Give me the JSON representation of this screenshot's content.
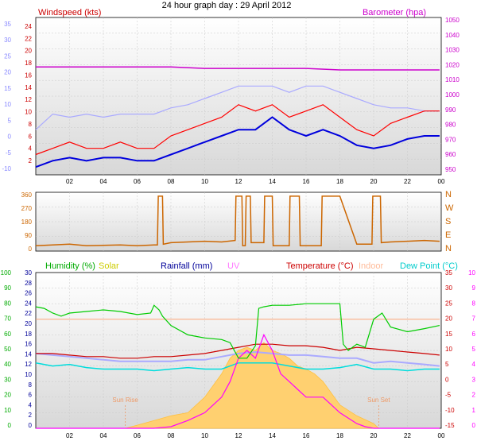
{
  "chart_data": [
    {
      "type": "line",
      "title": "24 hour graph day : 29 April 2012",
      "left_axis_label": "Windspeed (kts)",
      "right_axis_label": "Barometer (hpa)",
      "x_tick_labels": [
        "02",
        "04",
        "06",
        "08",
        "10",
        "12",
        "14",
        "16",
        "18",
        "20",
        "22",
        "00"
      ],
      "x_range_hours": [
        0,
        24
      ],
      "left_axis_outer_ticks": [
        "35",
        "30",
        "25",
        "20",
        "15",
        "10",
        "5",
        "0",
        "-5",
        "-10"
      ],
      "left_axis_inner_ticks": [
        "24",
        "22",
        "20",
        "18",
        "16",
        "14",
        "12",
        "10",
        "8",
        "6",
        "4",
        "2"
      ],
      "right_axis_ticks": [
        "1050",
        "1040",
        "1030",
        "1020",
        "1010",
        "1000",
        "990",
        "980",
        "970",
        "960",
        "950"
      ],
      "wind_ylim": [
        1,
        25
      ],
      "baro_ylim": [
        945,
        1050
      ],
      "grid": true,
      "series": [
        {
          "name": "Windspeed (kts)",
          "color": "#ff0000",
          "x_hours": [
            0,
            1,
            2,
            3,
            4,
            5,
            6,
            7,
            8,
            9,
            10,
            11,
            12,
            13,
            14,
            15,
            16,
            17,
            18,
            19,
            20,
            21,
            22,
            23,
            23.9
          ],
          "values": [
            4,
            5,
            6,
            5,
            5,
            6,
            5,
            5,
            7,
            8,
            9,
            10,
            12,
            11,
            12,
            10,
            11,
            12,
            10,
            8,
            7,
            9,
            10,
            11,
            11
          ]
        },
        {
          "color": "#0000dd",
          "x_hours": [
            0,
            1,
            2,
            3,
            4,
            5,
            6,
            7,
            8,
            9,
            10,
            11,
            12,
            13,
            14,
            15,
            16,
            17,
            18,
            19,
            20,
            21,
            22,
            23,
            23.9
          ],
          "values": [
            2,
            3,
            3.5,
            3,
            3.5,
            3.5,
            3,
            3,
            4,
            5,
            6,
            7,
            8,
            8,
            10,
            8,
            7,
            8,
            7,
            5.5,
            5,
            5.5,
            6.5,
            7,
            7
          ]
        },
        {
          "color": "#aaaaff",
          "x_hours": [
            0,
            1,
            2,
            3,
            4,
            5,
            6,
            7,
            8,
            9,
            10,
            11,
            12,
            13,
            14,
            15,
            16,
            17,
            18,
            19,
            20,
            21,
            22,
            23,
            23.9
          ],
          "values": [
            8,
            10.5,
            10,
            10.5,
            10,
            10.5,
            10.5,
            10.5,
            11.5,
            12,
            13,
            14,
            15,
            15,
            15,
            14,
            15,
            15,
            14,
            13,
            12,
            11.5,
            11.5,
            11,
            11
          ]
        },
        {
          "name": "Barometer (hpa)",
          "color": "#cc00cc",
          "x_hours": [
            0,
            2,
            4,
            6,
            8,
            10,
            12,
            14,
            16,
            18,
            20,
            22,
            23.9
          ],
          "values": [
            1017,
            1017,
            1017,
            1017,
            1017,
            1016,
            1016,
            1016,
            1016,
            1015,
            1015,
            1015,
            1015
          ]
        }
      ]
    },
    {
      "type": "line",
      "left_axis_ticks": [
        "360",
        "270",
        "180",
        "90",
        "0"
      ],
      "right_axis_labels": [
        "N",
        "W",
        "S",
        "E",
        "N"
      ],
      "x_range_hours": [
        0,
        24
      ],
      "ylim": [
        0,
        360
      ],
      "grid": true,
      "series": [
        {
          "color": "#cc6600",
          "x_hours": [
            0,
            1,
            2,
            3,
            4,
            5,
            6,
            7,
            7.2,
            7.25,
            7.5,
            7.55,
            8,
            9,
            10,
            11,
            11.8,
            11.85,
            12.2,
            12.25,
            12.4,
            12.45,
            12.7,
            12.75,
            13.5,
            13.55,
            14,
            14.05,
            15,
            15.05,
            15.6,
            15.65,
            16.9,
            16.95,
            18,
            19,
            19.9,
            19.95,
            20.4,
            20.45,
            21,
            22,
            23,
            23.9
          ],
          "values": [
            20,
            25,
            30,
            20,
            22,
            25,
            20,
            25,
            25,
            350,
            350,
            30,
            40,
            45,
            50,
            45,
            55,
            350,
            350,
            20,
            20,
            350,
            350,
            40,
            40,
            350,
            350,
            20,
            20,
            350,
            350,
            20,
            20,
            350,
            350,
            30,
            30,
            350,
            350,
            40,
            45,
            50,
            55,
            50
          ]
        }
      ]
    },
    {
      "type": "line",
      "series_labels": [
        "Humidity (%)",
        "Solar",
        "Rainfall (mm)",
        "UV",
        "Temperature (°C)",
        "Indoor",
        "Dew Point (°C)"
      ],
      "outer_left_ticks": [
        "100",
        "90",
        "80",
        "70",
        "60",
        "50",
        "40",
        "30",
        "20",
        "10",
        "0"
      ],
      "inner_left_ticks": [
        "30",
        "28",
        "26",
        "24",
        "22",
        "20",
        "18",
        "16",
        "14",
        "12",
        "10",
        "8",
        "6",
        "4",
        "2",
        "0"
      ],
      "temp_ticks": [
        "35",
        "30",
        "25",
        "20",
        "15",
        "10",
        "5",
        "0",
        "-5",
        "-10",
        "-15"
      ],
      "uv_ticks": [
        "10",
        "9",
        "8",
        "7",
        "6",
        "5",
        "4",
        "3",
        "2",
        "1",
        "0"
      ],
      "annotations": [
        "Sun Rise",
        "Sun Set"
      ],
      "sun_rise_hour": 5.3,
      "sun_set_hour": 20.3,
      "humidity_ylim": [
        0,
        100
      ],
      "temperature_ylim": [
        -15,
        35
      ],
      "uv_ylim": [
        0,
        10
      ],
      "x_range_hours": [
        0,
        24
      ],
      "grid": true,
      "series": [
        {
          "name": "Humidity (%)",
          "color": "#00cc00",
          "x_hours": [
            0,
            0.5,
            1,
            1.5,
            2,
            3,
            4,
            5,
            6,
            6.8,
            7,
            7.3,
            7.5,
            8,
            9,
            10,
            11,
            11.5,
            12,
            12.5,
            13,
            13.2,
            13.5,
            14,
            15,
            16,
            16.5,
            17,
            17.5,
            18,
            18.2,
            18.5,
            19,
            19.5,
            20,
            20.5,
            21,
            22,
            23,
            23.9
          ],
          "values": [
            78,
            77,
            74,
            72,
            74,
            75,
            76,
            75,
            73,
            74,
            79,
            76,
            72,
            66,
            60,
            58,
            57,
            55,
            45,
            45,
            53,
            77,
            78,
            79,
            79,
            80,
            80,
            80,
            80,
            80,
            54,
            50,
            54,
            52,
            70,
            74,
            65,
            62,
            64,
            66
          ]
        },
        {
          "name": "Solar",
          "color": "#ffc040",
          "x_hours": [
            5.3,
            6,
            7,
            8,
            9,
            10,
            11,
            11.5,
            12,
            12.5,
            13,
            13.5,
            14,
            14.5,
            15,
            15.5,
            16,
            16.5,
            17,
            18,
            19,
            20,
            20.3
          ],
          "values": [
            0,
            2,
            5,
            8,
            10,
            20,
            35,
            45,
            50,
            52,
            50,
            55,
            50,
            48,
            45,
            40,
            38,
            35,
            30,
            15,
            8,
            3,
            0
          ]
        },
        {
          "name": "UV",
          "color": "#ff00ff",
          "x_hours": [
            0,
            5,
            7,
            8,
            9,
            10,
            11,
            11.5,
            12,
            12.5,
            13,
            13.5,
            14,
            14.5,
            15,
            15.5,
            16,
            17,
            18,
            19,
            19.5,
            20,
            21,
            22,
            23,
            23.9
          ],
          "values": [
            0,
            0,
            0,
            0.1,
            0.5,
            1,
            2,
            3,
            4.5,
            5,
            4.5,
            6,
            5,
            3.5,
            3,
            2.5,
            2,
            2,
            1,
            0.3,
            0.1,
            0,
            0,
            0,
            0,
            0
          ]
        },
        {
          "name": "Temperature (°C)",
          "color": "#cc0000",
          "x_hours": [
            0,
            1,
            2,
            3,
            4,
            5,
            6,
            7,
            8,
            9,
            10,
            11,
            12,
            13,
            14,
            15,
            16,
            17,
            18,
            19,
            20,
            21,
            22,
            23,
            23.9
          ],
          "values": [
            9,
            9,
            8.5,
            8,
            8,
            7.5,
            7.5,
            8,
            8,
            8.5,
            9,
            10,
            11,
            12,
            12,
            11.5,
            11.5,
            11,
            10,
            11,
            10.5,
            10,
            9.5,
            9,
            8.5
          ]
        },
        {
          "name": "Indoor",
          "color": "#ff9966",
          "x_hours": [
            0,
            2,
            4,
            6,
            8,
            10,
            12,
            14,
            16,
            18,
            20,
            22,
            23.9
          ],
          "values": [
            20,
            20,
            20,
            20,
            20,
            20,
            20,
            20,
            20,
            20,
            20,
            20,
            20
          ]
        },
        {
          "name": "Dew Point (°C)",
          "color": "#00dddd",
          "x_hours": [
            0,
            1,
            2,
            3,
            4,
            5,
            6,
            7,
            8,
            9,
            10,
            11,
            12,
            13,
            14,
            15,
            16,
            17,
            18,
            19,
            20,
            21,
            22,
            23,
            23.9
          ],
          "values": [
            6,
            5,
            5.5,
            4.5,
            4,
            4,
            4,
            3.5,
            4,
            4.5,
            4,
            4,
            6,
            6,
            6,
            5,
            4,
            4,
            4.5,
            5.5,
            4,
            4,
            3.5,
            4,
            4
          ]
        },
        {
          "color": "#aaaaff",
          "x_hours": [
            0,
            1,
            2,
            3,
            4,
            5,
            6,
            7,
            8,
            9,
            10,
            11,
            12,
            13,
            14,
            15,
            16,
            17,
            18,
            19,
            20,
            21,
            22,
            23,
            23.9
          ],
          "values": [
            9,
            8.5,
            8,
            7.5,
            7,
            6.5,
            6.5,
            6.5,
            6.5,
            7,
            7,
            8,
            9,
            9.5,
            9,
            8.5,
            8.5,
            8,
            7.5,
            7.5,
            6,
            6.5,
            6,
            5.5,
            5
          ]
        }
      ]
    }
  ]
}
